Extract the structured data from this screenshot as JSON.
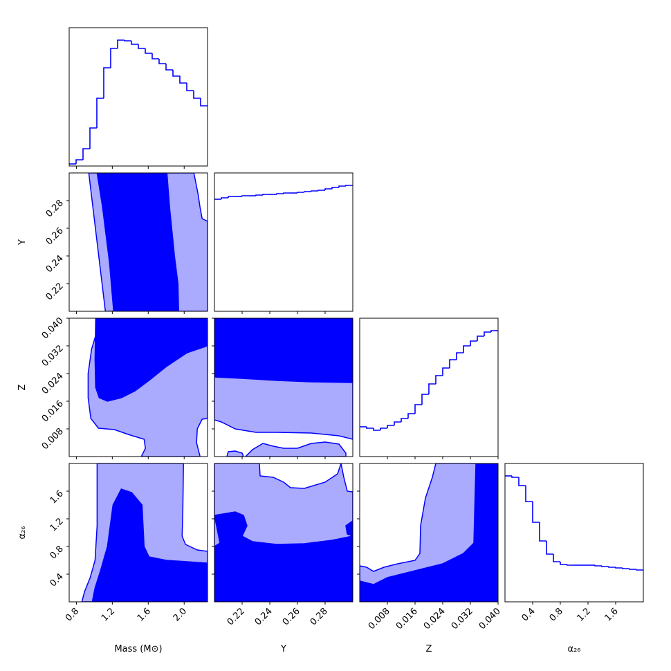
{
  "chart_data": [
    {
      "type": "histogram",
      "color": "#0000ff",
      "bins": [
        0.72,
        0.797,
        0.874,
        0.951,
        1.028,
        1.105,
        1.182,
        1.259,
        1.336,
        1.413,
        1.49,
        1.567,
        1.644,
        1.721,
        1.798,
        1.875,
        1.952,
        2.029,
        2.106,
        2.183,
        2.26
      ],
      "counts": [
        3,
        9,
        25,
        55,
        98,
        142,
        170,
        182,
        181,
        176,
        170,
        163,
        155,
        148,
        139,
        130,
        120,
        109,
        98,
        87
      ],
      "xlim": [
        0.72,
        2.26
      ],
      "xticks": [
        0.8,
        1.2,
        1.6,
        {
          "value": 2,
          "label": "2.0"
        }
      ],
      "ylim": [
        0,
        200
      ]
    },
    {
      "type": "contour",
      "line_color": "#0000ff",
      "xlim": [
        0.72,
        2.26
      ],
      "xticks": [
        0.8,
        1.2,
        1.6,
        {
          "value": 2,
          "label": "2.0"
        }
      ],
      "ylim": [
        0.2,
        0.3
      ],
      "yticks": [
        0.22,
        0.24,
        0.26,
        0.28
      ],
      "ylabel": "Y",
      "regions": [
        {
          "color": "#aaaaff",
          "x": [
            0.938,
            2.108,
            2.154,
            2.177,
            2.2,
            2.26,
            2.26,
            1.123
          ],
          "y": [
            0.3,
            0.3,
            0.285,
            0.275,
            0.267,
            0.265,
            0.2,
            0.2
          ]
        },
        {
          "color": "#0000ff",
          "x": [
            1.031,
            1.808,
            1.838,
            1.892,
            1.931,
            1.938,
            1.215,
            1.169,
            1.092
          ],
          "y": [
            0.3,
            0.3,
            0.275,
            0.24,
            0.22,
            0.2,
            0.2,
            0.235,
            0.275
          ]
        }
      ]
    },
    {
      "type": "histogram",
      "color": "#0000ff",
      "bins": [
        0.2,
        0.205,
        0.21,
        0.215,
        0.22,
        0.225,
        0.23,
        0.235,
        0.24,
        0.245,
        0.25,
        0.255,
        0.26,
        0.265,
        0.27,
        0.275,
        0.28,
        0.285,
        0.29,
        0.295,
        0.3
      ],
      "counts": [
        162,
        164,
        166,
        166,
        167,
        167,
        168,
        169,
        169,
        170,
        171,
        171,
        172,
        173,
        174,
        175,
        177,
        179,
        181,
        182
      ],
      "xlim": [
        0.2,
        0.3
      ],
      "xticks": [
        0.22,
        0.24,
        0.26,
        0.28
      ],
      "ylim": [
        0,
        200
      ]
    },
    {
      "type": "contour",
      "line_color": "#0000ff",
      "xlim": [
        0.72,
        2.26
      ],
      "xticks": [
        0.8,
        1.2,
        1.6,
        {
          "value": 2,
          "label": "2.0"
        }
      ],
      "ylim": [
        0,
        0.04
      ],
      "yticks": [
        0.008,
        0.016,
        0.024,
        0.032,
        {
          "value": 0.04,
          "label": "0.040"
        }
      ],
      "ylabel": "Z",
      "regions": [
        {
          "color": "#aaaaff",
          "x": [
            1.046,
            2.26,
            2.26,
            2.2,
            2.146,
            2.138,
            2.177,
            1.523,
            1.569,
            1.554,
            1.377,
            1.223,
            1.046,
            0.961,
            0.931,
            0.931,
            0.969,
            1.015
          ],
          "y": [
            0.04,
            0.04,
            0.011,
            0.0108,
            0.008,
            0.004,
            0,
            0,
            0.0024,
            0.005,
            0.0064,
            0.0078,
            0.0082,
            0.011,
            0.017,
            0.024,
            0.031,
            0.035
          ]
        },
        {
          "color": "#0000ff",
          "x": [
            1.015,
            2.26,
            2.26,
            2.031,
            1.8,
            1.608,
            1.454,
            1.3,
            1.146,
            1.054,
            1.015,
            1.008
          ],
          "y": [
            0.04,
            0.04,
            0.032,
            0.03,
            0.026,
            0.022,
            0.019,
            0.017,
            0.016,
            0.017,
            0.02,
            0.028
          ]
        }
      ]
    },
    {
      "type": "contour",
      "line_color": "#0000ff",
      "xlim": [
        0.2,
        0.3
      ],
      "xticks": [
        0.22,
        0.24,
        0.26,
        0.28
      ],
      "ylim": [
        0,
        0.04
      ],
      "yticks": [
        0.008,
        0.016,
        0.024,
        0.032,
        {
          "value": 0.04,
          "label": "0.040"
        }
      ],
      "regions": [
        {
          "color": "#aaaaff",
          "x": [
            0.2,
            0.3,
            0.3,
            0.29,
            0.27,
            0.245,
            0.23,
            0.215,
            0.205,
            0.2
          ],
          "y": [
            0.04,
            0.04,
            0.005,
            0.006,
            0.0068,
            0.007,
            0.007,
            0.008,
            0.01,
            0.0106
          ]
        },
        {
          "color": "#aaaaff",
          "x": [
            0.209,
            0.21,
            0.215,
            0.22,
            0.221
          ],
          "y": [
            0,
            0.0014,
            0.0016,
            0.001,
            0
          ]
        },
        {
          "color": "#aaaaff",
          "x": [
            0.2225,
            0.2275,
            0.235,
            0.2425,
            0.25,
            0.26,
            0.27,
            0.28,
            0.29,
            0.295,
            0.295
          ],
          "y": [
            0,
            0.002,
            0.0038,
            0.003,
            0.0024,
            0.0024,
            0.0038,
            0.0042,
            0.0036,
            0.001,
            0
          ]
        },
        {
          "color": "#0000ff",
          "x": [
            0.2,
            0.3,
            0.3,
            0.27,
            0.245,
            0.22,
            0.2
          ],
          "y": [
            0.04,
            0.04,
            0.0214,
            0.0216,
            0.022,
            0.0226,
            0.023
          ]
        }
      ]
    },
    {
      "type": "histogram",
      "color": "#0000ff",
      "bins": [
        0,
        0.002,
        0.004,
        0.006,
        0.008,
        0.01,
        0.012,
        0.014,
        0.016,
        0.018,
        0.02,
        0.022,
        0.024,
        0.026,
        0.028,
        0.03,
        0.032,
        0.034,
        0.036,
        0.038,
        0.04
      ],
      "counts": [
        43,
        41,
        38,
        41,
        45,
        50,
        55,
        62,
        75,
        90,
        105,
        117,
        128,
        140,
        150,
        160,
        167,
        174,
        180,
        182
      ],
      "xlim": [
        0,
        0.04
      ],
      "xticks": [
        0.008,
        0.016,
        0.024,
        0.032,
        {
          "value": 0.04,
          "label": "0.040"
        }
      ],
      "ylim": [
        0,
        200
      ]
    },
    {
      "type": "contour",
      "line_color": "#0000ff",
      "xlim": [
        0.72,
        2.26
      ],
      "xticks": [
        0.8,
        1.2,
        1.6,
        {
          "value": 2,
          "label": "2.0"
        }
      ],
      "xlabel": "Mass (M⊙)",
      "ylim": [
        0,
        2
      ],
      "yticks": [
        0.4,
        0.8,
        1.2,
        1.6
      ],
      "ylabel": "α₂₆",
      "regions": [
        {
          "color": "#aaaaff",
          "x": [
            0.861,
            0.892,
            0.954,
            1.008,
            1.031,
            1.031,
            1.992,
            1.985,
            1.977,
            2.015,
            2.146,
            2.26,
            2.26
          ],
          "y": [
            0,
            0.15,
            0.35,
            0.6,
            1.1,
            2,
            2,
            1.3,
            0.95,
            0.83,
            0.75,
            0.73,
            0
          ]
        },
        {
          "color": "#0000ff",
          "x": [
            0.977,
            1.008,
            1.069,
            1.146,
            1.208,
            1.3,
            1.415,
            1.531,
            1.554,
            1.608,
            1.8,
            2.031,
            2.26,
            2.26
          ],
          "y": [
            0,
            0.2,
            0.45,
            0.8,
            1.4,
            1.63,
            1.58,
            1.4,
            0.8,
            0.65,
            0.6,
            0.58,
            0.56,
            0
          ]
        }
      ]
    },
    {
      "type": "contour",
      "line_color": "#0000ff",
      "xlim": [
        0.2,
        0.3
      ],
      "xticks": [
        0.22,
        0.24,
        0.26,
        0.28
      ],
      "xlabel": "Y",
      "ylim": [
        0,
        2
      ],
      "yticks": [
        0.4,
        0.8,
        1.2,
        1.6
      ],
      "regions": [
        {
          "color": "#aaaaff",
          "x": [
            0.2,
            0.2325,
            0.233,
            0.2425,
            0.25,
            0.255,
            0.265,
            0.28,
            0.289,
            0.2915,
            0.2935,
            0.296,
            0.3,
            0.3,
            0.2
          ],
          "y": [
            2,
            2,
            1.82,
            1.8,
            1.73,
            1.65,
            1.64,
            1.73,
            1.85,
            2,
            1.8,
            1.6,
            1.59,
            0,
            0
          ]
        },
        {
          "color": "#0000ff",
          "x": [
            0.2,
            0.2,
            0.204,
            0.2015,
            0.2,
            0.215,
            0.221,
            0.2235,
            0.22,
            0.2275,
            0.245,
            0.265,
            0.285,
            0.3,
            0.3
          ],
          "y": [
            0,
            0.8,
            0.85,
            1.1,
            1.25,
            1.3,
            1.25,
            1.1,
            0.95,
            0.87,
            0.83,
            0.84,
            0.89,
            0.95,
            0
          ]
        },
        {
          "color": "#0000ff",
          "x": [
            0.295,
            0.3,
            0.3,
            0.296
          ],
          "y": [
            1.1,
            1.17,
            0.95,
            0.98
          ]
        }
      ]
    },
    {
      "type": "contour",
      "line_color": "#0000ff",
      "xlim": [
        0,
        0.04
      ],
      "xticks": [
        0.008,
        0.016,
        0.024,
        0.032,
        {
          "value": 0.04,
          "label": "0.040"
        }
      ],
      "xlabel": "Z",
      "ylim": [
        0,
        2
      ],
      "yticks": [
        0.4,
        0.8,
        1.2,
        1.6
      ],
      "regions": [
        {
          "color": "#aaaaff",
          "x": [
            0,
            0.002,
            0.004,
            0.007,
            0.011,
            0.016,
            0.0174,
            0.0176,
            0.019,
            0.021,
            0.022,
            0.04,
            0.04,
            0
          ],
          "y": [
            0.52,
            0.5,
            0.44,
            0.5,
            0.55,
            0.6,
            0.7,
            1.1,
            1.5,
            1.8,
            2,
            2,
            0,
            0
          ]
        },
        {
          "color": "#0000ff",
          "x": [
            0,
            0.004,
            0.008,
            0.016,
            0.024,
            0.03,
            0.033,
            0.0336,
            0.04,
            0.04,
            0
          ],
          "y": [
            0.3,
            0.25,
            0.35,
            0.45,
            0.55,
            0.7,
            0.85,
            2,
            2,
            0,
            0
          ]
        }
      ]
    },
    {
      "type": "histogram",
      "color": "#0000ff",
      "bins": [
        0,
        0.1,
        0.2,
        0.3,
        0.4,
        0.5,
        0.6,
        0.7,
        0.8,
        0.9,
        1,
        1.1,
        1.2,
        1.3,
        1.4,
        1.5,
        1.6,
        1.7,
        1.8,
        1.9,
        2
      ],
      "counts": [
        182,
        180,
        168,
        145,
        115,
        88,
        69,
        58,
        54,
        53,
        53,
        53,
        53,
        52,
        51,
        50,
        49,
        48,
        47,
        46
      ],
      "xlim": [
        0,
        2
      ],
      "xticks": [
        0.4,
        0.8,
        1.2,
        1.6
      ],
      "xlabel": "α₂₆",
      "ylim": [
        0,
        200
      ]
    }
  ]
}
